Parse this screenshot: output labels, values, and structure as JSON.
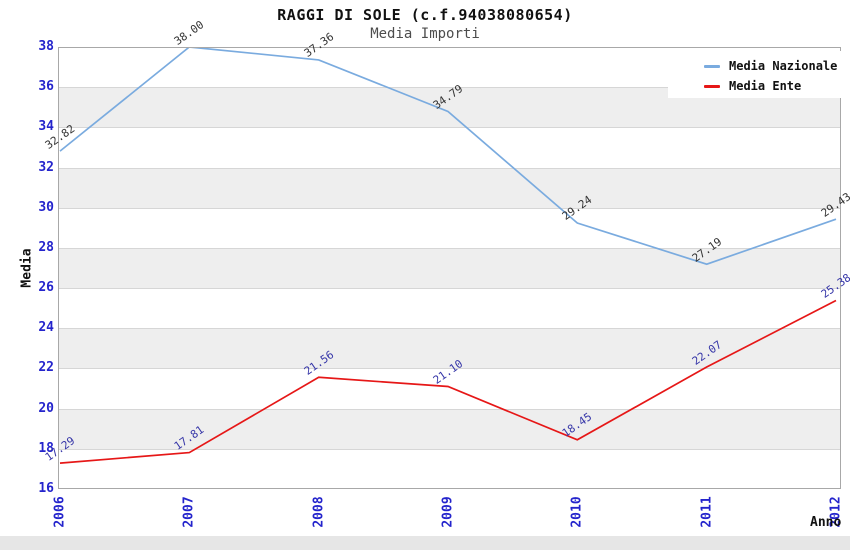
{
  "chart_data": {
    "type": "line",
    "title": "RAGGI DI SOLE (c.f.94038080654)",
    "subtitle": "Media Importi",
    "xlabel": "Anno",
    "ylabel": "Media",
    "categories": [
      "2006",
      "2007",
      "2008",
      "2009",
      "2010",
      "2011",
      "2012"
    ],
    "series": [
      {
        "name": "Media Nazionale",
        "color": "#7aabdf",
        "label_color": "#333333",
        "values": [
          32.82,
          38.0,
          37.36,
          34.79,
          29.24,
          27.19,
          29.43
        ]
      },
      {
        "name": "Media Ente",
        "color": "#e61717",
        "label_color": "#3636a8",
        "values": [
          17.29,
          17.81,
          21.56,
          21.1,
          18.45,
          22.07,
          25.38
        ]
      }
    ],
    "ylim": [
      16,
      38
    ],
    "ytick_step": 2,
    "grid": "horizontal-bands",
    "legend_position": "top-right"
  },
  "colors": {
    "axis_tick_label": "#2424cc",
    "band_gray": "#eeeeee",
    "band_white": "#ffffff",
    "gridline": "#d6d6d6",
    "plot_border": "#a8a8a8",
    "footer_bar": "#e6e6e6"
  }
}
